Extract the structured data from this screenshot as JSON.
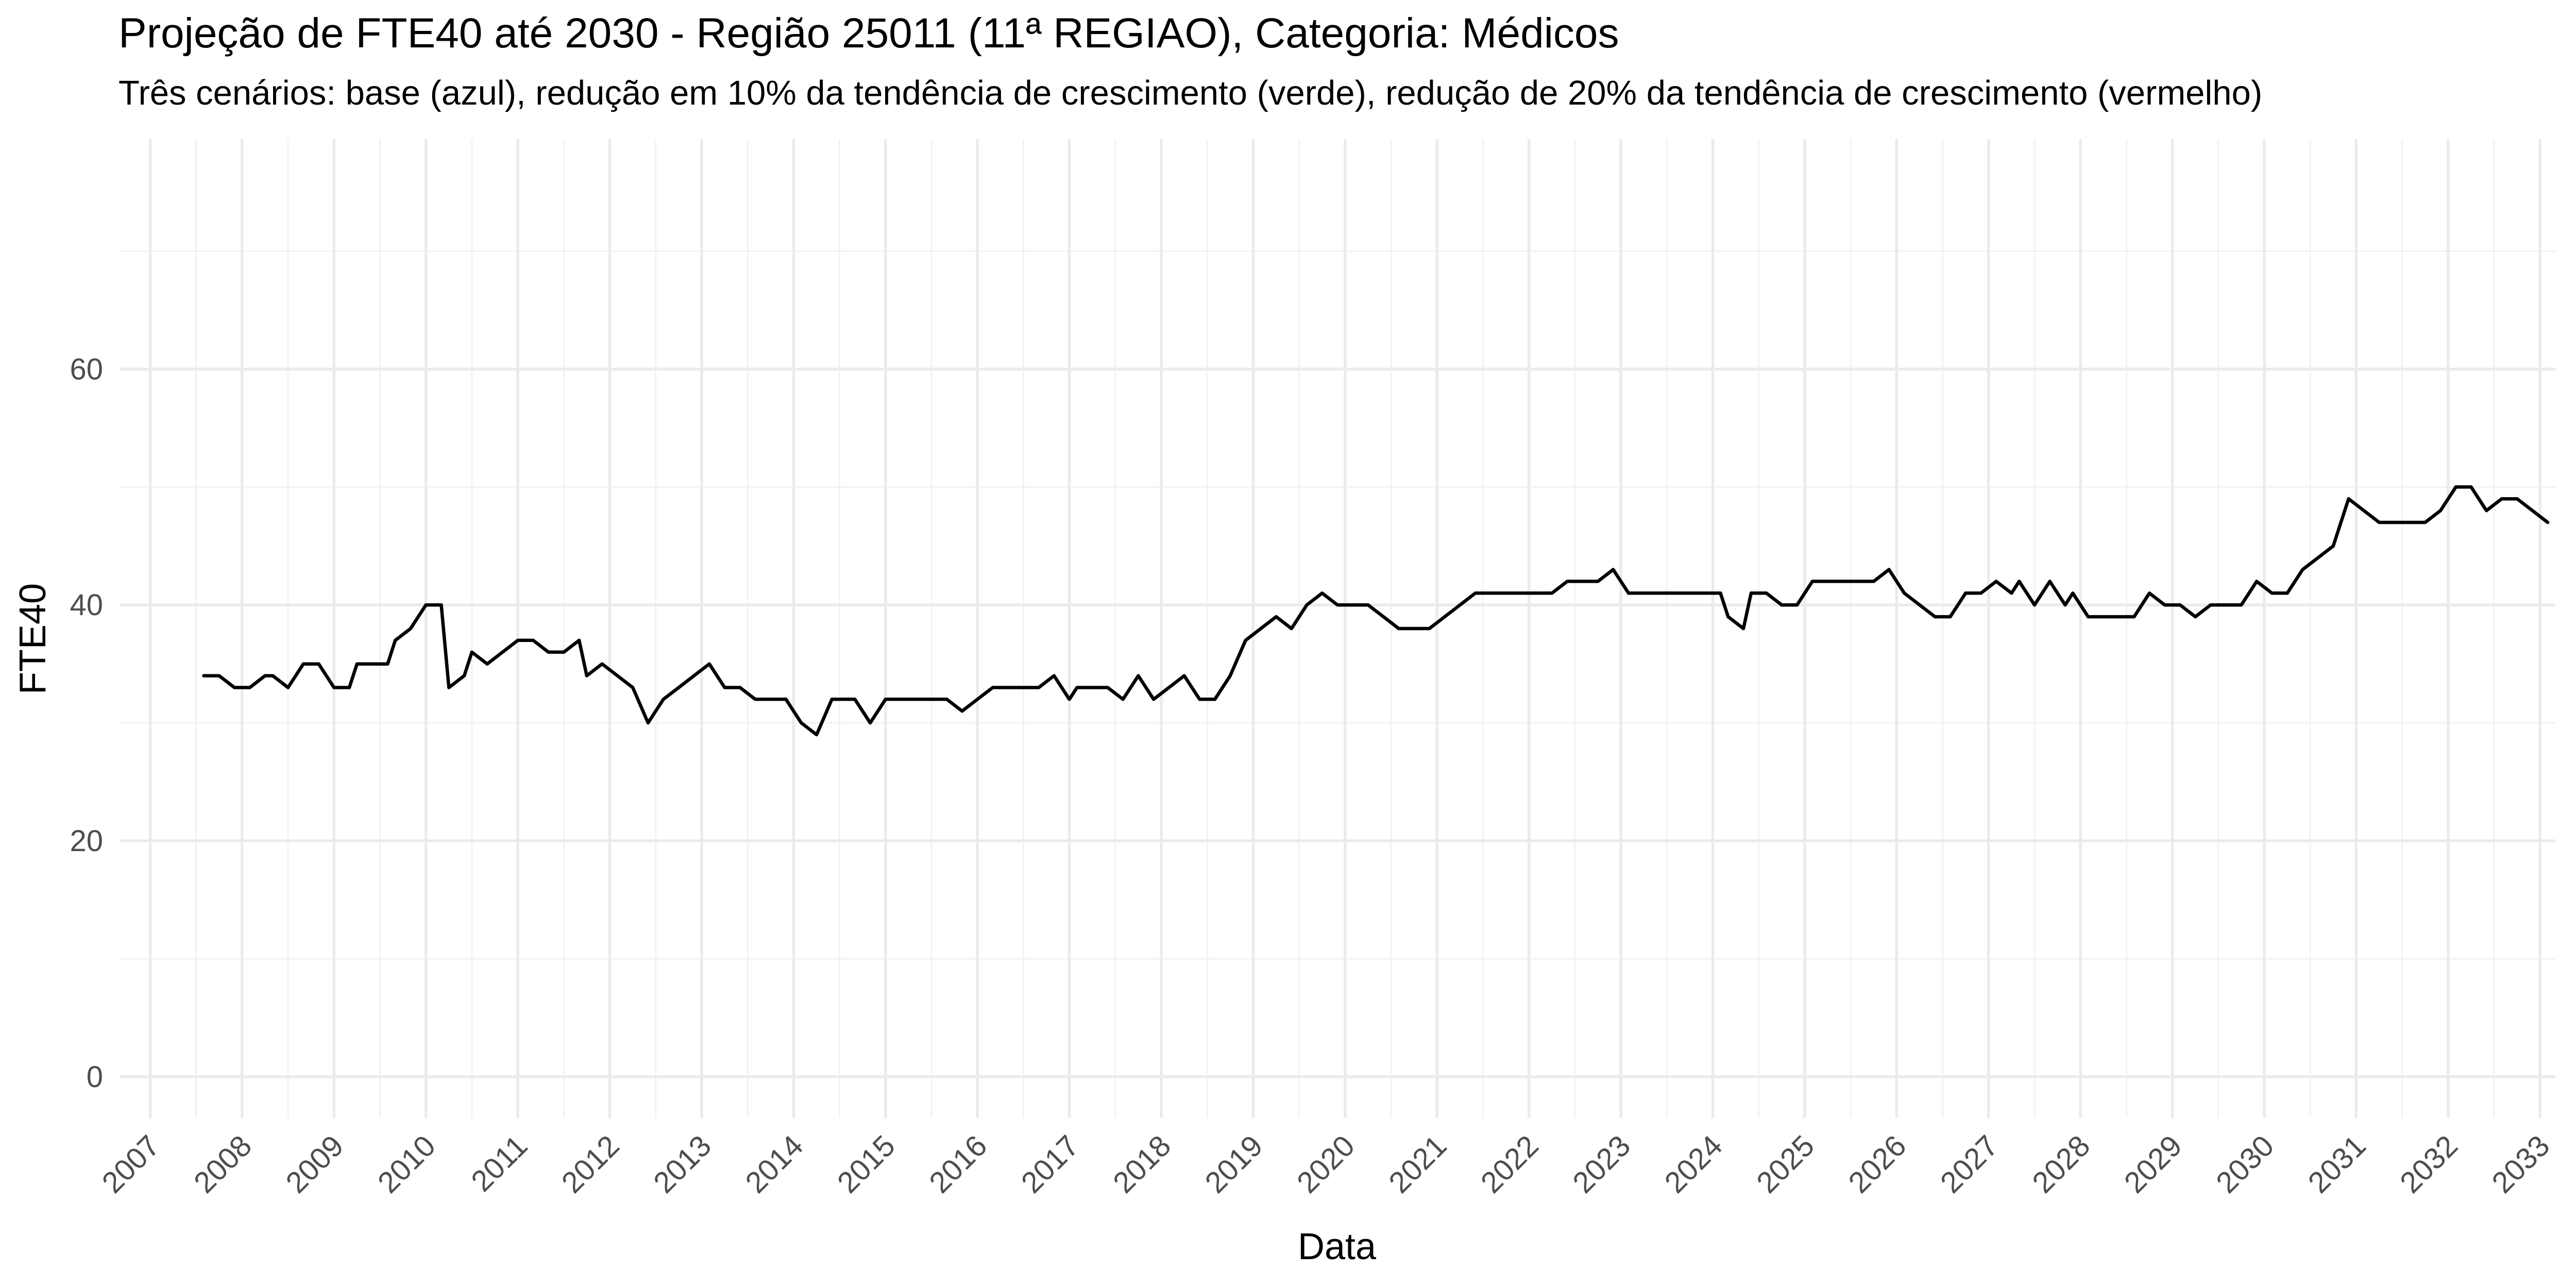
{
  "chart_data": {
    "type": "line",
    "title": "Projeção de FTE40 até 2030 - Região 25011 (11ª REGIAO), Categoria: Médicos",
    "subtitle": "Três cenários: base (azul), redução em 10% da tendência de crescimento (verde), redução de 20% da tendência de crescimento (vermelho)",
    "xlabel": "Data",
    "ylabel": "FTE40",
    "xlim": [
      "2006-09-01",
      "2033-03-01"
    ],
    "ylim": [
      -3.5,
      79.5
    ],
    "x_ticks": [
      "2007",
      "2008",
      "2009",
      "2010",
      "2011",
      "2012",
      "2013",
      "2014",
      "2015",
      "2016",
      "2017",
      "2018",
      "2019",
      "2020",
      "2021",
      "2022",
      "2023",
      "2024",
      "2025",
      "2026",
      "2027",
      "2028",
      "2029",
      "2030",
      "2031",
      "2032",
      "2033"
    ],
    "y_ticks": [
      0,
      20,
      40,
      60
    ],
    "grid": true,
    "legend": "none",
    "series": [
      {
        "color": "#000000",
        "points": [
          [
            "2007-08",
            34
          ],
          [
            "2007-10",
            34
          ],
          [
            "2007-12",
            33
          ],
          [
            "2008-02",
            33
          ],
          [
            "2008-04",
            34
          ],
          [
            "2008-05",
            34
          ],
          [
            "2008-07",
            33
          ],
          [
            "2008-09",
            35
          ],
          [
            "2008-11",
            35
          ],
          [
            "2009-01",
            33
          ],
          [
            "2009-03",
            33
          ],
          [
            "2009-04",
            35
          ],
          [
            "2009-06",
            35
          ],
          [
            "2009-08",
            35
          ],
          [
            "2009-09",
            37
          ],
          [
            "2009-11",
            38
          ],
          [
            "2010-01",
            40
          ],
          [
            "2010-03",
            40
          ],
          [
            "2010-04",
            33
          ],
          [
            "2010-06",
            34
          ],
          [
            "2010-07",
            36
          ],
          [
            "2010-09",
            35
          ],
          [
            "2010-11",
            36
          ],
          [
            "2011-01",
            37
          ],
          [
            "2011-03",
            37
          ],
          [
            "2011-05",
            36
          ],
          [
            "2011-07",
            36
          ],
          [
            "2011-09",
            37
          ],
          [
            "2011-10",
            34
          ],
          [
            "2011-12",
            35
          ],
          [
            "2012-02",
            34
          ],
          [
            "2012-04",
            33
          ],
          [
            "2012-06",
            30
          ],
          [
            "2012-08",
            32
          ],
          [
            "2012-10",
            33
          ],
          [
            "2012-12",
            34
          ],
          [
            "2013-02",
            35
          ],
          [
            "2013-04",
            33
          ],
          [
            "2013-06",
            33
          ],
          [
            "2013-08",
            32
          ],
          [
            "2013-10",
            32
          ],
          [
            "2013-12",
            32
          ],
          [
            "2014-02",
            30
          ],
          [
            "2014-04",
            29
          ],
          [
            "2014-06",
            32
          ],
          [
            "2014-08",
            32
          ],
          [
            "2014-09",
            32
          ],
          [
            "2014-11",
            30
          ],
          [
            "2015-01",
            32
          ],
          [
            "2015-03",
            32
          ],
          [
            "2015-05",
            32
          ],
          [
            "2015-07",
            32
          ],
          [
            "2015-09",
            32
          ],
          [
            "2015-11",
            31
          ],
          [
            "2016-01",
            32
          ],
          [
            "2016-03",
            33
          ],
          [
            "2016-05",
            33
          ],
          [
            "2016-07",
            33
          ],
          [
            "2016-09",
            33
          ],
          [
            "2016-11",
            34
          ],
          [
            "2017-01",
            32
          ],
          [
            "2017-02",
            33
          ],
          [
            "2017-04",
            33
          ],
          [
            "2017-06",
            33
          ],
          [
            "2017-08",
            32
          ],
          [
            "2017-10",
            34
          ],
          [
            "2017-12",
            32
          ],
          [
            "2018-02",
            33
          ],
          [
            "2018-04",
            34
          ],
          [
            "2018-06",
            32
          ],
          [
            "2018-08",
            32
          ],
          [
            "2018-10",
            34
          ],
          [
            "2018-12",
            37
          ],
          [
            "2019-02",
            38
          ],
          [
            "2019-04",
            39
          ],
          [
            "2019-06",
            38
          ],
          [
            "2019-08",
            40
          ],
          [
            "2019-10",
            41
          ],
          [
            "2019-12",
            40
          ],
          [
            "2020-02",
            40
          ],
          [
            "2020-04",
            40
          ],
          [
            "2020-06",
            39
          ],
          [
            "2020-08",
            38
          ],
          [
            "2020-10",
            38
          ],
          [
            "2020-12",
            38
          ],
          [
            "2021-02",
            39
          ],
          [
            "2021-04",
            40
          ],
          [
            "2021-06",
            41
          ],
          [
            "2021-08",
            41
          ],
          [
            "2021-10",
            41
          ],
          [
            "2021-12",
            41
          ],
          [
            "2022-02",
            41
          ],
          [
            "2022-04",
            41
          ],
          [
            "2022-06",
            42
          ],
          [
            "2022-08",
            42
          ],
          [
            "2022-10",
            42
          ],
          [
            "2022-12",
            43
          ],
          [
            "2023-02",
            41
          ],
          [
            "2023-04",
            41
          ],
          [
            "2023-06",
            41
          ],
          [
            "2023-08",
            41
          ],
          [
            "2023-10",
            41
          ],
          [
            "2023-12",
            41
          ],
          [
            "2024-02",
            41
          ],
          [
            "2024-03",
            39
          ],
          [
            "2024-05",
            38
          ],
          [
            "2024-06",
            41
          ],
          [
            "2024-08",
            41
          ],
          [
            "2024-10",
            40
          ],
          [
            "2024-12",
            40
          ],
          [
            "2025-02",
            42
          ],
          [
            "2025-04",
            42
          ],
          [
            "2025-06",
            42
          ],
          [
            "2025-08",
            42
          ],
          [
            "2025-10",
            42
          ],
          [
            "2025-12",
            43
          ],
          [
            "2026-02",
            41
          ],
          [
            "2026-04",
            40
          ],
          [
            "2026-06",
            39
          ],
          [
            "2026-08",
            39
          ],
          [
            "2026-10",
            41
          ],
          [
            "2026-12",
            41
          ],
          [
            "2027-02",
            42
          ],
          [
            "2027-04",
            41
          ],
          [
            "2027-05",
            42
          ],
          [
            "2027-07",
            40
          ],
          [
            "2027-09",
            42
          ],
          [
            "2027-11",
            40
          ],
          [
            "2027-12",
            41
          ],
          [
            "2028-02",
            39
          ],
          [
            "2028-04",
            39
          ],
          [
            "2028-06",
            39
          ],
          [
            "2028-08",
            39
          ],
          [
            "2028-10",
            41
          ],
          [
            "2028-12",
            40
          ],
          [
            "2029-02",
            40
          ],
          [
            "2029-04",
            39
          ],
          [
            "2029-06",
            40
          ],
          [
            "2029-08",
            40
          ],
          [
            "2029-10",
            40
          ],
          [
            "2029-12",
            42
          ],
          [
            "2030-02",
            41
          ],
          [
            "2030-04",
            41
          ],
          [
            "2030-06",
            43
          ],
          [
            "2030-08",
            44
          ],
          [
            "2030-10",
            45
          ],
          [
            "2030-12",
            49
          ],
          [
            "2031-02",
            48
          ],
          [
            "2031-04",
            47
          ],
          [
            "2031-06",
            47
          ],
          [
            "2031-08",
            47
          ],
          [
            "2031-10",
            47
          ],
          [
            "2031-12",
            48
          ],
          [
            "2032-02",
            50
          ],
          [
            "2032-04",
            50
          ],
          [
            "2032-06",
            48
          ],
          [
            "2032-08",
            49
          ],
          [
            "2032-10",
            49
          ],
          [
            "2032-12",
            48
          ],
          [
            "2033-02",
            47
          ]
        ]
      }
    ]
  }
}
